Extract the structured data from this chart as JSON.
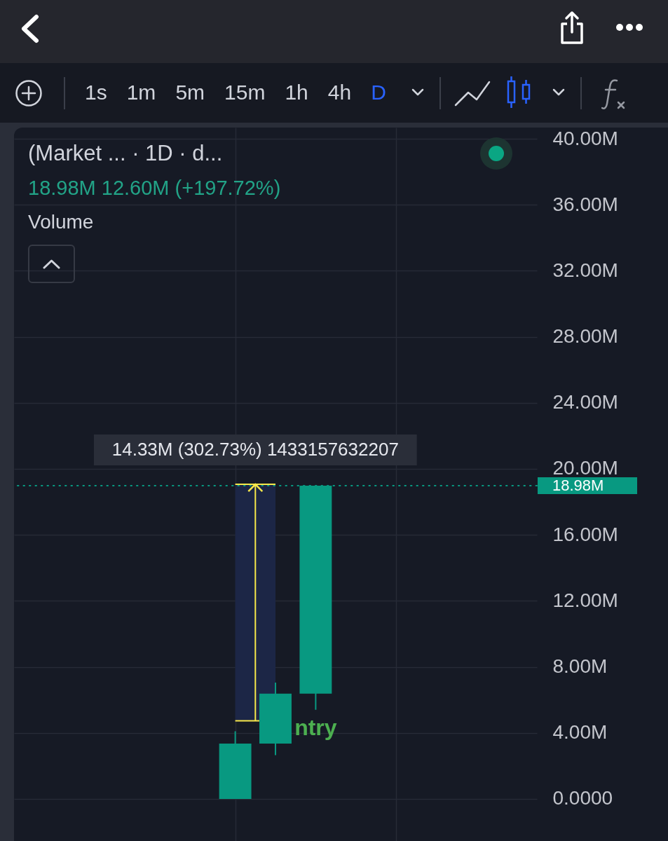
{
  "chart_data": {
    "type": "candlestick",
    "title": "(Market ... · 1D · d...",
    "subtitle": "18.98M 12.60M (+197.72%)",
    "categories": [
      null,
      null,
      null,
      null,
      null,
      null,
      null,
      null,
      null,
      null,
      null,
      null,
      null
    ],
    "ohlc": [
      null,
      null,
      null,
      null,
      null,
      [
        0,
        4.1,
        0,
        3.35
      ],
      [
        3.35,
        7.05,
        2.65,
        6.38
      ],
      [
        6.38,
        18.98,
        5.4,
        18.98
      ],
      null,
      null,
      null,
      null,
      null
    ],
    "colors": [
      null,
      null,
      null,
      null,
      null,
      "#089981",
      "#089981",
      "#089981",
      null,
      null,
      null,
      null,
      null
    ],
    "ylim": [
      -2.55,
      40.68
    ],
    "yticks": [
      {
        "value": 0,
        "label": "0.0000"
      },
      {
        "value": 4,
        "label": "4.00M"
      },
      {
        "value": 8,
        "label": "8.00M"
      },
      {
        "value": 12,
        "label": "12.00M"
      },
      {
        "value": 16,
        "label": "16.00M"
      },
      {
        "value": 20,
        "label": "20.00M"
      },
      {
        "value": 24,
        "label": "24.00M"
      },
      {
        "value": 28,
        "label": "28.00M"
      },
      {
        "value": 32,
        "label": "32.00M"
      },
      {
        "value": 36,
        "label": "36.00M"
      },
      {
        "value": 40,
        "label": "40.00M"
      }
    ],
    "grid": true,
    "tick_labels": "y",
    "ref_lines": [
      {
        "axis": "y",
        "value": 18.98,
        "label": "18.98M",
        "color": "#089981",
        "line_style": "dotted"
      }
    ],
    "bands": [
      {
        "axis": "y",
        "from": 4.73,
        "to": 19.06,
        "label": "14.33M (302.73%) 1433157632207",
        "color": "#1c2646"
      }
    ],
    "annotations": [
      "Volume",
      "1s",
      "1m",
      "5m",
      "15m",
      "1h",
      "4h",
      "D",
      "ntry"
    ]
  }
}
